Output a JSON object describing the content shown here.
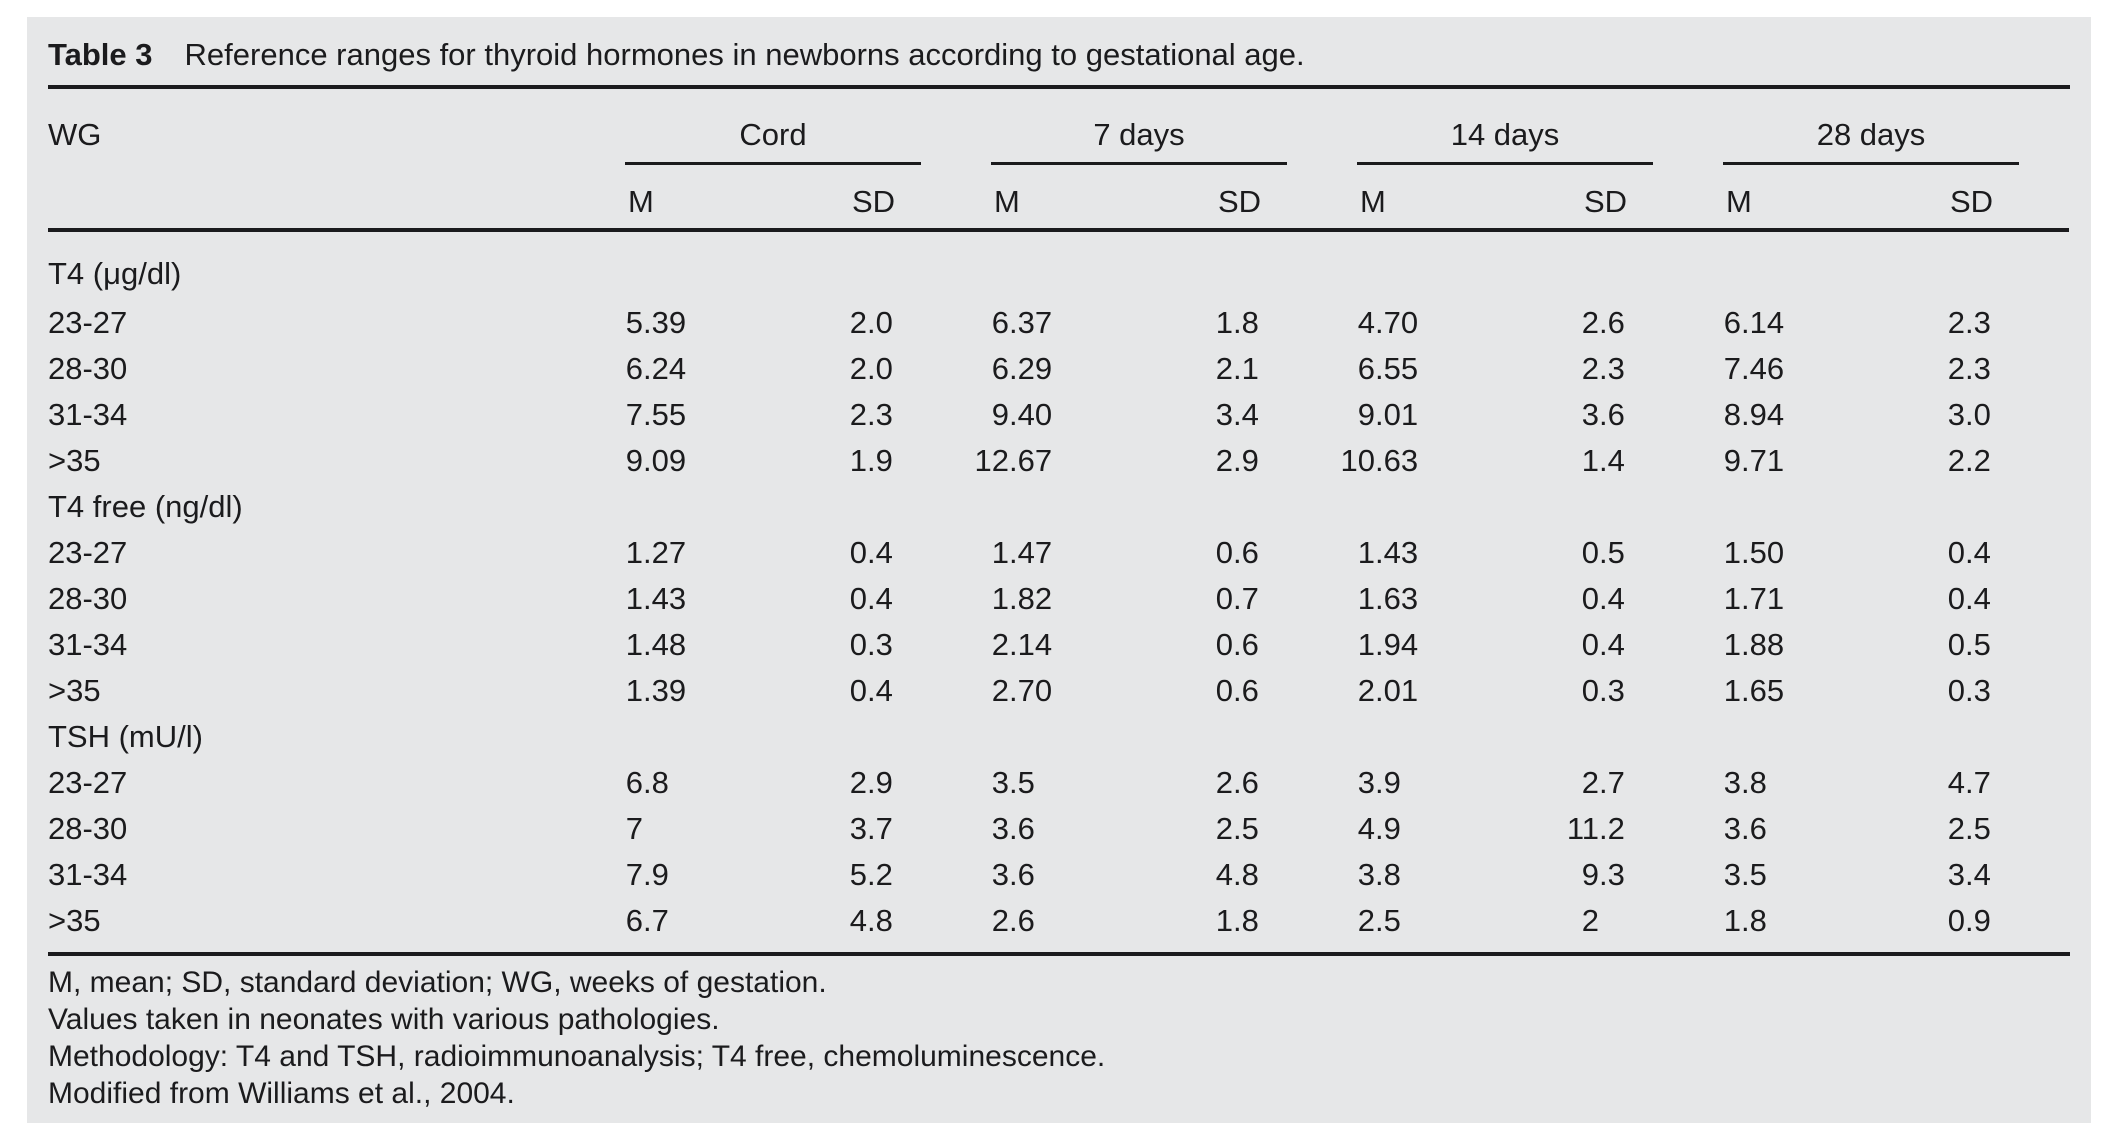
{
  "caption": {
    "label": "Table 3",
    "text": "Reference ranges for thyroid hormones in newborns according to gestational age."
  },
  "table": {
    "corner_label": "WG",
    "groups": [
      {
        "label": "Cord",
        "sub": [
          "M",
          "SD"
        ]
      },
      {
        "label": "7 days",
        "sub": [
          "M",
          "SD"
        ]
      },
      {
        "label": "14 days",
        "sub": [
          "M",
          "SD"
        ]
      },
      {
        "label": "28 days",
        "sub": [
          "M",
          "SD"
        ]
      }
    ],
    "sections": [
      {
        "label": "T4 (μg/dl)",
        "rows": [
          {
            "wg": "23-27",
            "values": [
              "5.39",
              "2.0",
              "6.37",
              "1.8",
              "4.70",
              "2.6",
              "6.14",
              "2.3"
            ]
          },
          {
            "wg": "28-30",
            "values": [
              "6.24",
              "2.0",
              "6.29",
              "2.1",
              "6.55",
              "2.3",
              "7.46",
              "2.3"
            ]
          },
          {
            "wg": "31-34",
            "values": [
              "7.55",
              "2.3",
              "9.40",
              "3.4",
              "9.01",
              "3.6",
              "8.94",
              "3.0"
            ]
          },
          {
            "wg": ">35",
            "values": [
              "9.09",
              "1.9",
              "12.67",
              "2.9",
              "10.63",
              "1.4",
              "9.71",
              "2.2"
            ]
          }
        ]
      },
      {
        "label": "T4 free (ng/dl)",
        "rows": [
          {
            "wg": "23-27",
            "values": [
              "1.27",
              "0.4",
              "1.47",
              "0.6",
              "1.43",
              "0.5",
              "1.50",
              "0.4"
            ]
          },
          {
            "wg": "28-30",
            "values": [
              "1.43",
              "0.4",
              "1.82",
              "0.7",
              "1.63",
              "0.4",
              "1.71",
              "0.4"
            ]
          },
          {
            "wg": "31-34",
            "values": [
              "1.48",
              "0.3",
              "2.14",
              "0.6",
              "1.94",
              "0.4",
              "1.88",
              "0.5"
            ]
          },
          {
            "wg": ">35",
            "values": [
              "1.39",
              "0.4",
              "2.70",
              "0.6",
              "2.01",
              "0.3",
              "1.65",
              "0.3"
            ]
          }
        ]
      },
      {
        "label": "TSH (mU/l)",
        "rows": [
          {
            "wg": "23-27",
            "values": [
              "6.8",
              "2.9",
              "3.5",
              "2.6",
              "3.9",
              "2.7",
              "3.8",
              "4.7"
            ]
          },
          {
            "wg": "28-30",
            "values": [
              "7",
              "3.7",
              "3.6",
              "2.5",
              "4.9",
              "11.2",
              "3.6",
              "2.5"
            ]
          },
          {
            "wg": "31-34",
            "values": [
              "7.9",
              "5.2",
              "3.6",
              "4.8",
              "3.8",
              "9.3",
              "3.5",
              "3.4"
            ]
          },
          {
            "wg": ">35",
            "values": [
              "6.7",
              "4.8",
              "2.6",
              "1.8",
              "2.5",
              "2",
              "1.8",
              "0.9"
            ]
          }
        ]
      }
    ]
  },
  "footnotes": [
    "M, mean; SD, standard deviation; WG, weeks of gestation.",
    "Values taken in neonates with various pathologies.",
    "Methodology: T4 and TSH, radioimmunoanalysis; T4 free, chemoluminescence.",
    "Modified from Williams et al., 2004."
  ],
  "colors": {
    "panel_bg": "#e6e7e8",
    "text": "#1b1b1d",
    "rule": "#1b1b1d"
  }
}
